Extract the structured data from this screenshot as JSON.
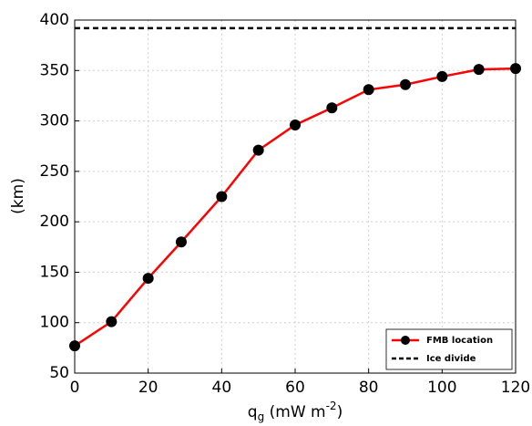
{
  "chart_data": {
    "type": "line",
    "ylabel": "(km)",
    "xlabel": {
      "main": "q",
      "sub": "g",
      "unit": " (mW m",
      "sup": "-2",
      "end": ")"
    },
    "x": [
      0,
      10,
      20,
      29,
      40,
      50,
      60,
      70,
      80,
      90,
      100,
      110,
      120
    ],
    "series": [
      {
        "name": "FMB location",
        "color": "#ff0000",
        "marker_color": "#000000",
        "dash": false,
        "x": [
          0,
          10,
          20,
          29,
          40,
          50,
          60,
          70,
          80,
          90,
          100,
          110,
          120
        ],
        "values": [
          77,
          101,
          144,
          180,
          225,
          271,
          296,
          313,
          331,
          336,
          344,
          351,
          352
        ]
      },
      {
        "name": "Ice divide",
        "color": "#000000",
        "dash": true,
        "x": [
          0,
          120
        ],
        "values": [
          392,
          392
        ]
      }
    ],
    "xlim": [
      0,
      120
    ],
    "xticks": [
      0,
      20,
      40,
      60,
      80,
      100,
      120
    ],
    "ylim": [
      50,
      400
    ],
    "yticks": [
      50,
      100,
      150,
      200,
      250,
      300,
      350,
      400
    ],
    "grid": true,
    "legend": "lower right"
  }
}
